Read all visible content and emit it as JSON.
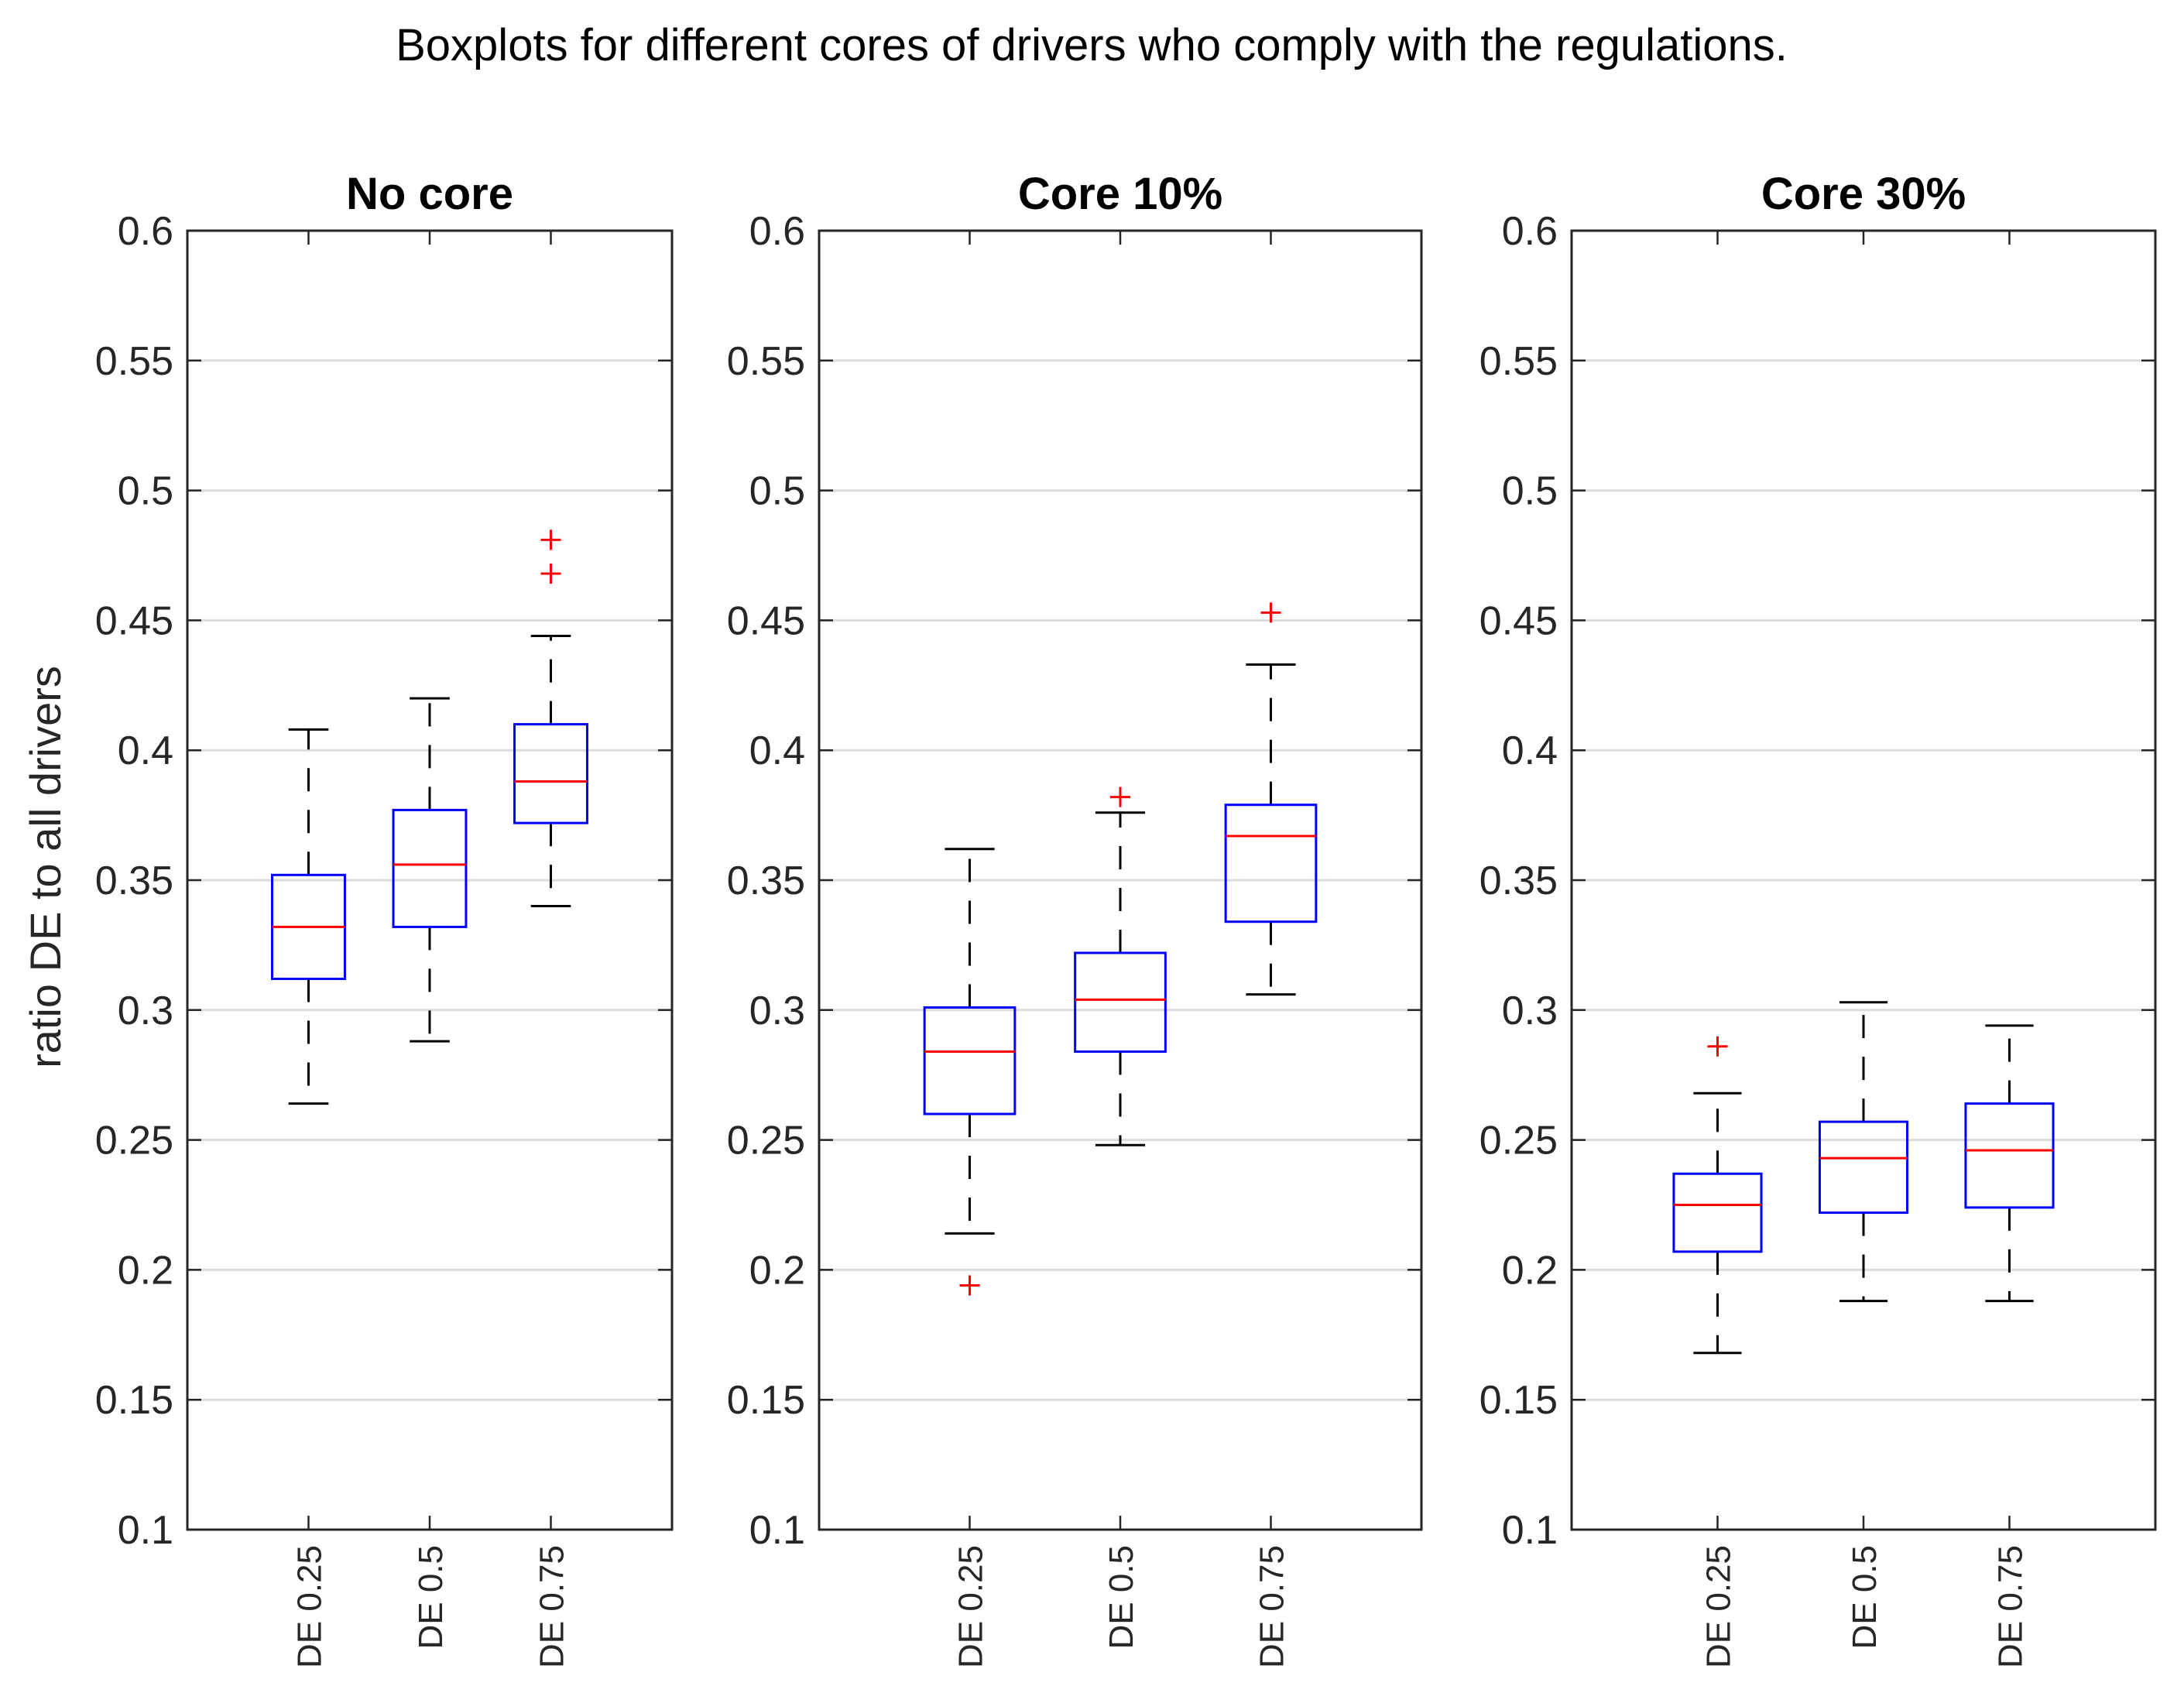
{
  "chart_data": {
    "type": "boxplot",
    "suptitle": "Boxplots for different cores of drivers who comply with the regulations.",
    "ylabel": "ratio DE to all drivers",
    "ylim": [
      0.1,
      0.6
    ],
    "yticks": [
      0.1,
      0.15,
      0.2,
      0.25,
      0.3,
      0.35,
      0.4,
      0.45,
      0.5,
      0.55,
      0.6
    ],
    "ytick_labels": [
      "0.1",
      "0.15",
      "0.2",
      "0.25",
      "0.3",
      "0.35",
      "0.4",
      "0.45",
      "0.5",
      "0.55",
      "0.6"
    ],
    "grid": "horizontal",
    "colors": {
      "box": "#0000ff",
      "median": "#ff0000",
      "whisker": "#000000",
      "outlier": "#ff0000",
      "grid": "#dcdcdc",
      "axis": "#262626"
    },
    "panels": [
      {
        "title": "No core",
        "categories": [
          "DE 0.25",
          "DE 0.5",
          "DE 0.75"
        ],
        "boxes": [
          {
            "whisker_low": 0.264,
            "q1": 0.312,
            "median": 0.332,
            "q3": 0.352,
            "whisker_high": 0.408,
            "outliers": []
          },
          {
            "whisker_low": 0.288,
            "q1": 0.332,
            "median": 0.356,
            "q3": 0.377,
            "whisker_high": 0.42,
            "outliers": []
          },
          {
            "whisker_low": 0.34,
            "q1": 0.372,
            "median": 0.388,
            "q3": 0.41,
            "whisker_high": 0.444,
            "outliers": [
              0.468,
              0.481
            ]
          }
        ]
      },
      {
        "title": "Core 10%",
        "categories": [
          "DE 0.25",
          "DE 0.5",
          "DE 0.75"
        ],
        "boxes": [
          {
            "whisker_low": 0.214,
            "q1": 0.26,
            "median": 0.284,
            "q3": 0.301,
            "whisker_high": 0.362,
            "outliers": [
              0.194
            ]
          },
          {
            "whisker_low": 0.248,
            "q1": 0.284,
            "median": 0.304,
            "q3": 0.322,
            "whisker_high": 0.376,
            "outliers": [
              0.382
            ]
          },
          {
            "whisker_low": 0.306,
            "q1": 0.334,
            "median": 0.367,
            "q3": 0.379,
            "whisker_high": 0.433,
            "outliers": [
              0.453
            ]
          }
        ]
      },
      {
        "title": "Core 30%",
        "categories": [
          "DE 0.25",
          "DE 0.5",
          "DE 0.75"
        ],
        "boxes": [
          {
            "whisker_low": 0.168,
            "q1": 0.207,
            "median": 0.225,
            "q3": 0.237,
            "whisker_high": 0.268,
            "outliers": [
              0.286
            ]
          },
          {
            "whisker_low": 0.188,
            "q1": 0.222,
            "median": 0.243,
            "q3": 0.257,
            "whisker_high": 0.303,
            "outliers": []
          },
          {
            "whisker_low": 0.188,
            "q1": 0.224,
            "median": 0.246,
            "q3": 0.264,
            "whisker_high": 0.294,
            "outliers": []
          }
        ]
      }
    ]
  }
}
